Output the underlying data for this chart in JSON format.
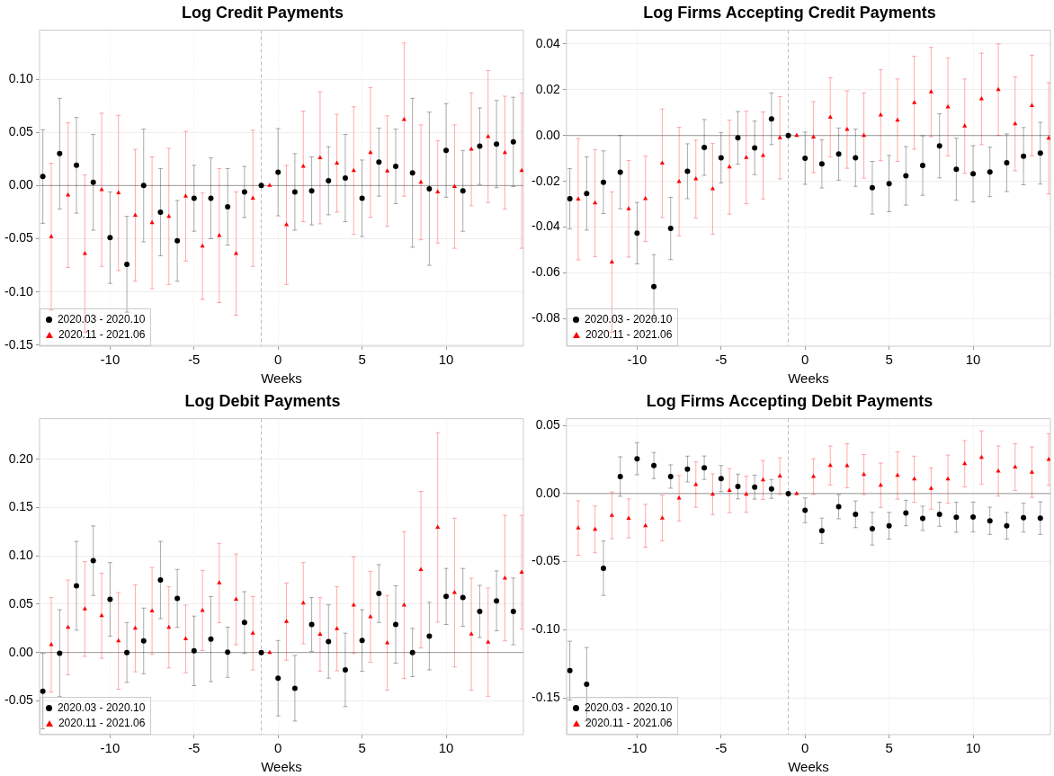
{
  "chart_data": [
    {
      "type": "scatter",
      "title": "Log Credit Payments",
      "xlabel": "Weeks",
      "xlim": [
        -14.2,
        14.6
      ],
      "xticks": [
        -10,
        -5,
        0,
        5,
        10
      ],
      "ylim": [
        -0.151,
        0.146
      ],
      "yticks": [
        {
          "value": -0.15,
          "label": "-0.15"
        },
        {
          "value": -0.1,
          "label": "-0.10"
        },
        {
          "value": -0.05,
          "label": "-0.05"
        },
        {
          "value": 0,
          "label": "0.00"
        },
        {
          "value": 0.05,
          "label": "0.05"
        },
        {
          "value": 0.1,
          "label": "0.10"
        }
      ],
      "grid": true,
      "legend": "bottom left",
      "ref_lines": [
        {
          "axis": "y",
          "value": 0,
          "color": "#999999",
          "line_style": "solid"
        },
        {
          "axis": "x",
          "value": -1,
          "color": "#bbbbbb",
          "line_style": "dashed"
        }
      ],
      "series": [
        {
          "name": "2020.03 - 2020.10",
          "color": "#000000",
          "marker": "circle",
          "x": [
            -14,
            -13,
            -12,
            -11,
            -10,
            -9,
            -8,
            -7,
            -6,
            -5,
            -4,
            -3,
            -2,
            -1,
            0,
            1,
            2,
            3,
            4,
            5,
            6,
            7,
            8,
            9,
            10,
            11,
            12,
            13,
            14
          ],
          "values": [
            0.0085,
            0.03,
            0.019,
            0.003,
            -0.049,
            -0.074,
            0.0,
            -0.025,
            -0.052,
            -0.012,
            -0.012,
            -0.02,
            -0.006,
            0,
            0.0125,
            -0.006,
            -0.005,
            0.0045,
            0.007,
            -0.012,
            0.022,
            0.018,
            0.012,
            -0.003,
            0.033,
            -0.005,
            0.037,
            0.039,
            0.041
          ],
          "errors": [
            0.044,
            0.052,
            0.045,
            0.045,
            0.043,
            0.045,
            0.053,
            0.041,
            0.038,
            0.031,
            0.038,
            0.036,
            0.024,
            null,
            0.041,
            0.036,
            0.032,
            0.032,
            0.041,
            0.036,
            0.032,
            0.035,
            0.07,
            0.072,
            0.044,
            0.038,
            0.036,
            0.041,
            0.042
          ]
        },
        {
          "name": "2020.11 - 2021.06",
          "color": "#ff0000",
          "marker": "triangle",
          "x": [
            -13.5,
            -12.5,
            -11.5,
            -10.5,
            -9.5,
            -8.5,
            -7.5,
            -6.5,
            -5.5,
            -4.5,
            -3.5,
            -2.5,
            -1.5,
            -0.5,
            0.5,
            1.5,
            2.5,
            3.5,
            4.5,
            5.5,
            6.5,
            7.5,
            8.5,
            9.5,
            10.5,
            11.5,
            12.5,
            13.5,
            14.5
          ],
          "values": [
            -0.048,
            -0.009,
            -0.064,
            -0.004,
            -0.007,
            -0.028,
            -0.035,
            -0.029,
            -0.01,
            -0.057,
            -0.047,
            -0.064,
            -0.012,
            0,
            -0.037,
            0.018,
            0.026,
            0.021,
            0.014,
            0.031,
            0.0135,
            0.062,
            0.003,
            -0.006,
            -0.001,
            0.034,
            0.046,
            0.031,
            0.014
          ],
          "errors": [
            0.069,
            0.068,
            0.074,
            0.072,
            0.073,
            0.062,
            0.062,
            0.064,
            0.061,
            0.05,
            0.063,
            0.058,
            0.064,
            null,
            0.056,
            0.052,
            0.062,
            0.046,
            0.06,
            0.061,
            0.052,
            0.072,
            0.054,
            0.048,
            0.058,
            0.053,
            0.062,
            0.053,
            0.073
          ]
        }
      ]
    },
    {
      "type": "scatter",
      "title": "Log Firms Accepting Credit Payments",
      "xlabel": "Weeks",
      "xlim": [
        -14.2,
        14.6
      ],
      "xticks": [
        -10,
        -5,
        0,
        5,
        10
      ],
      "ylim": [
        -0.092,
        0.046
      ],
      "yticks": [
        {
          "value": -0.08,
          "label": "-0.08"
        },
        {
          "value": -0.06,
          "label": "-0.06"
        },
        {
          "value": -0.04,
          "label": "-0.04"
        },
        {
          "value": -0.02,
          "label": "-0.02"
        },
        {
          "value": 0,
          "label": "0.00"
        },
        {
          "value": 0.02,
          "label": "0.02"
        },
        {
          "value": 0.04,
          "label": "0.04"
        }
      ],
      "grid": true,
      "legend": "bottom left",
      "ref_lines": [
        {
          "axis": "y",
          "value": 0,
          "color": "#999999",
          "line_style": "solid"
        },
        {
          "axis": "x",
          "value": -1,
          "color": "#bbbbbb",
          "line_style": "dashed"
        }
      ],
      "series": [
        {
          "name": "2020.03 - 2020.10",
          "color": "#000000",
          "marker": "circle",
          "x": [
            -14,
            -13,
            -12,
            -11,
            -10,
            -9,
            -8,
            -7,
            -6,
            -5,
            -4,
            -3,
            -2,
            -1,
            0,
            1,
            2,
            3,
            4,
            5,
            6,
            7,
            8,
            9,
            10,
            11,
            12,
            13,
            14
          ],
          "values": [
            -0.0276,
            -0.0253,
            -0.0204,
            -0.016,
            -0.0426,
            -0.066,
            -0.0406,
            -0.0156,
            -0.0052,
            -0.0097,
            -0.001,
            -0.0054,
            0.0073,
            0,
            -0.0099,
            -0.0124,
            -0.0081,
            -0.0097,
            -0.0228,
            -0.021,
            -0.0176,
            -0.0131,
            -0.0045,
            -0.0147,
            -0.0167,
            -0.0159,
            -0.0119,
            -0.009,
            -0.0077
          ],
          "errors": [
            0.0132,
            0.016,
            0.0137,
            0.016,
            0.0134,
            0.014,
            0.0136,
            0.012,
            0.0122,
            0.011,
            0.0115,
            0.0117,
            0.0113,
            null,
            0.0114,
            0.0105,
            0.0114,
            0.0125,
            0.0115,
            0.0123,
            0.0128,
            0.013,
            0.014,
            0.0135,
            0.0123,
            0.0108,
            0.0126,
            0.0125,
            0.0135
          ]
        },
        {
          "name": "2020.11 - 2021.06",
          "color": "#ff0000",
          "marker": "triangle",
          "x": [
            -13.5,
            -12.5,
            -11.5,
            -10.5,
            -9.5,
            -8.5,
            -7.5,
            -6.5,
            -5.5,
            -4.5,
            -3.5,
            -2.5,
            -1.5,
            -0.5,
            0.5,
            1.5,
            2.5,
            3.5,
            4.5,
            5.5,
            6.5,
            7.5,
            8.5,
            9.5,
            10.5,
            11.5,
            12.5,
            13.5,
            14.5
          ],
          "values": [
            -0.0278,
            -0.0295,
            -0.0553,
            -0.032,
            -0.0276,
            -0.0121,
            -0.0201,
            -0.019,
            -0.0233,
            -0.0138,
            -0.0096,
            -0.0087,
            -0.001,
            0,
            -0.0007,
            0.0079,
            0.0026,
            0,
            0.0089,
            0.0067,
            0.0143,
            0.019,
            0.0125,
            0.0041,
            0.016,
            0.02,
            0.0051,
            0.0131,
            -0.0012
          ],
          "errors": [
            0.0265,
            0.0234,
            0.0307,
            0.0211,
            0.0186,
            0.0237,
            0.0237,
            0.017,
            0.0198,
            0.0205,
            0.0202,
            0.019,
            0.018,
            null,
            0.0155,
            0.0173,
            0.0169,
            0.0186,
            0.0199,
            0.018,
            0.0203,
            0.0195,
            0.0214,
            0.0206,
            0.02,
            0.02,
            0.0205,
            0.022,
            0.0243
          ]
        }
      ]
    },
    {
      "type": "scatter",
      "title": "Log Debit Payments",
      "xlabel": "Weeks",
      "xlim": [
        -14.2,
        14.6
      ],
      "xticks": [
        -10,
        -5,
        0,
        5,
        10
      ],
      "ylim": [
        -0.085,
        0.242
      ],
      "yticks": [
        {
          "value": -0.05,
          "label": "-0.05"
        },
        {
          "value": 0,
          "label": "0.00"
        },
        {
          "value": 0.05,
          "label": "0.05"
        },
        {
          "value": 0.1,
          "label": "0.10"
        },
        {
          "value": 0.15,
          "label": "0.15"
        },
        {
          "value": 0.2,
          "label": "0.20"
        }
      ],
      "grid": true,
      "legend": "bottom left",
      "ref_lines": [
        {
          "axis": "y",
          "value": 0,
          "color": "#999999",
          "line_style": "solid"
        },
        {
          "axis": "x",
          "value": -1,
          "color": "#bbbbbb",
          "line_style": "dashed"
        }
      ],
      "series": [
        {
          "name": "2020.03 - 2020.10",
          "color": "#000000",
          "marker": "circle",
          "x": [
            -14,
            -13,
            -12,
            -11,
            -10,
            -9,
            -8,
            -7,
            -6,
            -5,
            -4,
            -3,
            -2,
            -1,
            0,
            1,
            2,
            3,
            4,
            5,
            6,
            7,
            8,
            9,
            10,
            11,
            12,
            13,
            14
          ],
          "values": [
            -0.04,
            -0.0007,
            0.069,
            0.095,
            0.055,
            0.0,
            0.012,
            0.075,
            0.056,
            0.0017,
            0.0138,
            0.0003,
            0.031,
            0,
            -0.0266,
            -0.037,
            0.029,
            0.0114,
            -0.018,
            0.0124,
            0.061,
            0.029,
            0.0,
            0.017,
            0.058,
            0.057,
            0.0425,
            0.0535,
            0.0425
          ],
          "errors": [
            0.039,
            0.045,
            0.046,
            0.036,
            0.038,
            0.031,
            0.034,
            0.04,
            0.03,
            0.036,
            0.044,
            0.026,
            0.032,
            null,
            0.039,
            0.034,
            0.028,
            0.038,
            0.038,
            0.032,
            0.03,
            0.04,
            0.025,
            0.035,
            0.029,
            0.03,
            0.027,
            0.031,
            0.0345
          ]
        },
        {
          "name": "2020.11 - 2021.06",
          "color": "#ff0000",
          "marker": "triangle",
          "x": [
            -13.5,
            -12.5,
            -11.5,
            -10.5,
            -9.5,
            -8.5,
            -7.5,
            -6.5,
            -5.5,
            -4.5,
            -3.5,
            -2.5,
            -1.5,
            -0.5,
            0.5,
            1.5,
            2.5,
            3.5,
            4.5,
            5.5,
            6.5,
            7.5,
            8.5,
            9.5,
            10.5,
            11.5,
            12.5,
            13.5,
            14.5
          ],
          "values": [
            0.008,
            0.026,
            0.045,
            0.038,
            0.012,
            0.025,
            0.043,
            0.026,
            0.014,
            0.0435,
            0.072,
            0.055,
            0.02,
            0,
            0.032,
            0.051,
            0.0187,
            0.0245,
            0.049,
            0.037,
            0.01,
            0.049,
            0.0857,
            0.1295,
            0.062,
            0.019,
            0.0107,
            0.077,
            0.083
          ],
          "errors": [
            0.049,
            0.049,
            0.049,
            0.044,
            0.05,
            0.045,
            0.045,
            0.042,
            0.035,
            0.0415,
            0.041,
            0.047,
            0.038,
            null,
            0.04,
            0.042,
            0.038,
            0.0435,
            0.05,
            0.047,
            0.049,
            0.076,
            0.081,
            0.098,
            0.077,
            0.058,
            0.056,
            0.065,
            0.059
          ]
        }
      ]
    },
    {
      "type": "scatter",
      "title": "Log Firms Accepting Debit Payments",
      "xlabel": "Weeks",
      "xlim": [
        -14.2,
        14.6
      ],
      "xticks": [
        -10,
        -5,
        0,
        5,
        10
      ],
      "ylim": [
        -0.177,
        0.055
      ],
      "yticks": [
        {
          "value": -0.15,
          "label": "-0.15"
        },
        {
          "value": -0.1,
          "label": "-0.10"
        },
        {
          "value": -0.05,
          "label": "-0.05"
        },
        {
          "value": 0,
          "label": "0.00"
        },
        {
          "value": 0.05,
          "label": "0.05"
        }
      ],
      "grid": true,
      "legend": "bottom left",
      "ref_lines": [
        {
          "axis": "y",
          "value": 0,
          "color": "#999999",
          "line_style": "solid"
        },
        {
          "axis": "x",
          "value": -1,
          "color": "#bbbbbb",
          "line_style": "dashed"
        }
      ],
      "series": [
        {
          "name": "2020.03 - 2020.10",
          "color": "#000000",
          "marker": "circle",
          "x": [
            -14,
            -13,
            -12,
            -11,
            -10,
            -9,
            -8,
            -7,
            -6,
            -5,
            -4,
            -3,
            -2,
            -1,
            0,
            1,
            2,
            3,
            4,
            5,
            6,
            7,
            8,
            9,
            10,
            11,
            12,
            13,
            14
          ],
          "values": [
            -0.13,
            -0.14,
            -0.0548,
            0.0125,
            0.0256,
            0.0206,
            0.0125,
            0.018,
            0.019,
            0.011,
            0.0052,
            0.0047,
            0.0034,
            0,
            -0.0123,
            -0.0273,
            -0.0096,
            -0.0152,
            -0.0258,
            -0.0236,
            -0.0143,
            -0.0182,
            -0.0152,
            -0.0174,
            -0.0172,
            -0.02,
            -0.0236,
            -0.0177,
            -0.018
          ],
          "errors": [
            0.0216,
            0.027,
            0.02,
            0.0145,
            0.0118,
            0.0096,
            0.0086,
            0.0095,
            0.0086,
            0.0096,
            0.0091,
            0.0088,
            0.0069,
            null,
            0.0091,
            0.0093,
            0.0089,
            0.0098,
            0.012,
            0.0098,
            0.0094,
            0.0089,
            0.0088,
            0.011,
            0.011,
            0.01,
            0.0098,
            0.0106,
            0.012
          ]
        },
        {
          "name": "2020.11 - 2021.06",
          "color": "#ff0000",
          "marker": "triangle",
          "x": [
            -13.5,
            -12.5,
            -11.5,
            -10.5,
            -9.5,
            -8.5,
            -7.5,
            -6.5,
            -5.5,
            -4.5,
            -3.5,
            -2.5,
            -1.5,
            -0.5,
            0.5,
            1.5,
            2.5,
            3.5,
            4.5,
            5.5,
            6.5,
            7.5,
            8.5,
            9.5,
            10.5,
            11.5,
            12.5,
            13.5,
            14.5
          ],
          "values": [
            -0.0253,
            -0.0263,
            -0.016,
            -0.0182,
            -0.0236,
            -0.018,
            -0.0034,
            0.0066,
            -0.0005,
            0.0022,
            -0.0005,
            0.01,
            0.0128,
            0,
            0.0125,
            0.0206,
            0.0204,
            0.014,
            0.0061,
            0.0133,
            0.0106,
            0.0037,
            0.0106,
            0.0219,
            0.0265,
            0.0165,
            0.0194,
            0.0157,
            0.025
          ],
          "errors": [
            0.02,
            0.0172,
            0.0172,
            0.0143,
            0.0157,
            0.0168,
            0.0167,
            0.0167,
            0.015,
            0.0162,
            0.0133,
            0.0143,
            0.0135,
            null,
            0.0131,
            0.0143,
            0.0162,
            0.0147,
            0.0163,
            0.0174,
            0.0169,
            0.0152,
            0.0177,
            0.017,
            0.0195,
            0.0184,
            0.0172,
            0.0185,
            0.019
          ]
        }
      ]
    }
  ]
}
